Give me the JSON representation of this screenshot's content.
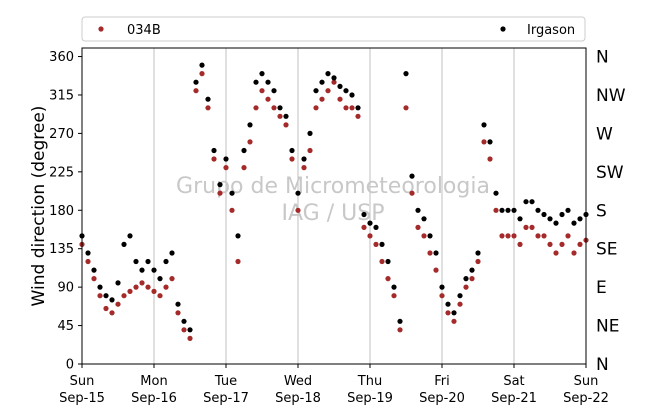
{
  "chart_data": {
    "type": "scatter",
    "title": "",
    "xlabel": "",
    "ylabel": "Wind direction (degree)",
    "ylim": [
      0,
      370
    ],
    "xlim": [
      "2019-09-15",
      "2019-09-22"
    ],
    "y_ticks": [
      0,
      45,
      90,
      135,
      180,
      225,
      270,
      315,
      360
    ],
    "x_ticks": [
      {
        "value": "2019-09-15",
        "line1": "Sun",
        "line2": "Sep-15"
      },
      {
        "value": "2019-09-16",
        "line1": "Mon",
        "line2": "Sep-16"
      },
      {
        "value": "2019-09-17",
        "line1": "Tue",
        "line2": "Sep-17"
      },
      {
        "value": "2019-09-18",
        "line1": "Wed",
        "line2": "Sep-18"
      },
      {
        "value": "2019-09-19",
        "line1": "Thu",
        "line2": "Sep-19"
      },
      {
        "value": "2019-09-20",
        "line1": "Fri",
        "line2": "Sep-20"
      },
      {
        "value": "2019-09-21",
        "line1": "Sat",
        "line2": "Sep-21"
      },
      {
        "value": "2019-09-22",
        "line1": "Sun",
        "line2": "Sep-22"
      }
    ],
    "compass_labels": [
      {
        "value": 0,
        "label": "N"
      },
      {
        "value": 45,
        "label": "NE"
      },
      {
        "value": 90,
        "label": "E"
      },
      {
        "value": 135,
        "label": "SE"
      },
      {
        "value": 180,
        "label": "S"
      },
      {
        "value": 225,
        "label": "SW"
      },
      {
        "value": 270,
        "label": "W"
      },
      {
        "value": 315,
        "label": "NW"
      },
      {
        "value": 360,
        "label": "N"
      }
    ],
    "grid": "vertical",
    "legend_position": "top",
    "watermark": [
      "Grupo de Micrometeorologia",
      "IAG / USP"
    ],
    "series": [
      {
        "name": "034B",
        "color": "#a52a2a",
        "points": [
          [
            "2019-09-15T00:00",
            140
          ],
          [
            "2019-09-15T02:00",
            120
          ],
          [
            "2019-09-15T04:00",
            100
          ],
          [
            "2019-09-15T06:00",
            80
          ],
          [
            "2019-09-15T08:00",
            65
          ],
          [
            "2019-09-15T10:00",
            60
          ],
          [
            "2019-09-15T12:00",
            70
          ],
          [
            "2019-09-15T14:00",
            80
          ],
          [
            "2019-09-15T16:00",
            85
          ],
          [
            "2019-09-15T18:00",
            90
          ],
          [
            "2019-09-15T20:00",
            95
          ],
          [
            "2019-09-15T22:00",
            90
          ],
          [
            "2019-09-16T00:00",
            85
          ],
          [
            "2019-09-16T02:00",
            80
          ],
          [
            "2019-09-16T04:00",
            90
          ],
          [
            "2019-09-16T06:00",
            100
          ],
          [
            "2019-09-16T08:00",
            60
          ],
          [
            "2019-09-16T10:00",
            40
          ],
          [
            "2019-09-16T12:00",
            30
          ],
          [
            "2019-09-16T14:00",
            320
          ],
          [
            "2019-09-16T16:00",
            340
          ],
          [
            "2019-09-16T18:00",
            300
          ],
          [
            "2019-09-16T20:00",
            240
          ],
          [
            "2019-09-16T22:00",
            200
          ],
          [
            "2019-09-17T00:00",
            230
          ],
          [
            "2019-09-17T02:00",
            180
          ],
          [
            "2019-09-17T04:00",
            120
          ],
          [
            "2019-09-17T06:00",
            230
          ],
          [
            "2019-09-17T08:00",
            260
          ],
          [
            "2019-09-17T10:00",
            300
          ],
          [
            "2019-09-17T12:00",
            320
          ],
          [
            "2019-09-17T14:00",
            310
          ],
          [
            "2019-09-17T16:00",
            300
          ],
          [
            "2019-09-17T18:00",
            290
          ],
          [
            "2019-09-17T20:00",
            280
          ],
          [
            "2019-09-17T22:00",
            240
          ],
          [
            "2019-09-18T00:00",
            180
          ],
          [
            "2019-09-18T02:00",
            230
          ],
          [
            "2019-09-18T04:00",
            250
          ],
          [
            "2019-09-18T06:00",
            300
          ],
          [
            "2019-09-18T08:00",
            310
          ],
          [
            "2019-09-18T10:00",
            320
          ],
          [
            "2019-09-18T12:00",
            330
          ],
          [
            "2019-09-18T14:00",
            310
          ],
          [
            "2019-09-18T16:00",
            300
          ],
          [
            "2019-09-18T18:00",
            300
          ],
          [
            "2019-09-18T20:00",
            290
          ],
          [
            "2019-09-18T22:00",
            160
          ],
          [
            "2019-09-19T00:00",
            150
          ],
          [
            "2019-09-19T02:00",
            140
          ],
          [
            "2019-09-19T04:00",
            120
          ],
          [
            "2019-09-19T06:00",
            100
          ],
          [
            "2019-09-19T08:00",
            80
          ],
          [
            "2019-09-19T10:00",
            40
          ],
          [
            "2019-09-19T12:00",
            300
          ],
          [
            "2019-09-19T14:00",
            200
          ],
          [
            "2019-09-19T16:00",
            160
          ],
          [
            "2019-09-19T18:00",
            150
          ],
          [
            "2019-09-19T20:00",
            130
          ],
          [
            "2019-09-19T22:00",
            110
          ],
          [
            "2019-09-20T00:00",
            80
          ],
          [
            "2019-09-20T02:00",
            60
          ],
          [
            "2019-09-20T04:00",
            50
          ],
          [
            "2019-09-20T06:00",
            70
          ],
          [
            "2019-09-20T08:00",
            90
          ],
          [
            "2019-09-20T10:00",
            100
          ],
          [
            "2019-09-20T12:00",
            120
          ],
          [
            "2019-09-20T14:00",
            260
          ],
          [
            "2019-09-20T16:00",
            240
          ],
          [
            "2019-09-20T18:00",
            180
          ],
          [
            "2019-09-20T20:00",
            150
          ],
          [
            "2019-09-20T22:00",
            150
          ],
          [
            "2019-09-21T00:00",
            150
          ],
          [
            "2019-09-21T02:00",
            140
          ],
          [
            "2019-09-21T04:00",
            160
          ],
          [
            "2019-09-21T06:00",
            160
          ],
          [
            "2019-09-21T08:00",
            150
          ],
          [
            "2019-09-21T10:00",
            150
          ],
          [
            "2019-09-21T12:00",
            140
          ],
          [
            "2019-09-21T14:00",
            130
          ],
          [
            "2019-09-21T16:00",
            140
          ],
          [
            "2019-09-21T18:00",
            150
          ],
          [
            "2019-09-21T20:00",
            130
          ],
          [
            "2019-09-21T22:00",
            140
          ],
          [
            "2019-09-22T00:00",
            145
          ]
        ]
      },
      {
        "name": "Irgason",
        "color": "#000000",
        "points": [
          [
            "2019-09-15T00:00",
            150
          ],
          [
            "2019-09-15T02:00",
            130
          ],
          [
            "2019-09-15T04:00",
            110
          ],
          [
            "2019-09-15T06:00",
            90
          ],
          [
            "2019-09-15T08:00",
            80
          ],
          [
            "2019-09-15T10:00",
            75
          ],
          [
            "2019-09-15T12:00",
            95
          ],
          [
            "2019-09-15T14:00",
            140
          ],
          [
            "2019-09-15T16:00",
            150
          ],
          [
            "2019-09-15T18:00",
            120
          ],
          [
            "2019-09-15T20:00",
            110
          ],
          [
            "2019-09-15T22:00",
            120
          ],
          [
            "2019-09-16T00:00",
            110
          ],
          [
            "2019-09-16T02:00",
            100
          ],
          [
            "2019-09-16T04:00",
            120
          ],
          [
            "2019-09-16T06:00",
            130
          ],
          [
            "2019-09-16T08:00",
            70
          ],
          [
            "2019-09-16T10:00",
            50
          ],
          [
            "2019-09-16T12:00",
            40
          ],
          [
            "2019-09-16T14:00",
            330
          ],
          [
            "2019-09-16T16:00",
            350
          ],
          [
            "2019-09-16T18:00",
            310
          ],
          [
            "2019-09-16T20:00",
            250
          ],
          [
            "2019-09-16T22:00",
            210
          ],
          [
            "2019-09-17T00:00",
            240
          ],
          [
            "2019-09-17T02:00",
            200
          ],
          [
            "2019-09-17T04:00",
            150
          ],
          [
            "2019-09-17T06:00",
            250
          ],
          [
            "2019-09-17T08:00",
            280
          ],
          [
            "2019-09-17T10:00",
            330
          ],
          [
            "2019-09-17T12:00",
            340
          ],
          [
            "2019-09-17T14:00",
            330
          ],
          [
            "2019-09-17T16:00",
            320
          ],
          [
            "2019-09-17T18:00",
            300
          ],
          [
            "2019-09-17T20:00",
            290
          ],
          [
            "2019-09-17T22:00",
            250
          ],
          [
            "2019-09-18T00:00",
            200
          ],
          [
            "2019-09-18T02:00",
            240
          ],
          [
            "2019-09-18T04:00",
            270
          ],
          [
            "2019-09-18T06:00",
            320
          ],
          [
            "2019-09-18T08:00",
            330
          ],
          [
            "2019-09-18T10:00",
            340
          ],
          [
            "2019-09-18T12:00",
            335
          ],
          [
            "2019-09-18T14:00",
            325
          ],
          [
            "2019-09-18T16:00",
            320
          ],
          [
            "2019-09-18T18:00",
            315
          ],
          [
            "2019-09-18T20:00",
            300
          ],
          [
            "2019-09-18T22:00",
            175
          ],
          [
            "2019-09-19T00:00",
            165
          ],
          [
            "2019-09-19T02:00",
            160
          ],
          [
            "2019-09-19T04:00",
            140
          ],
          [
            "2019-09-19T06:00",
            120
          ],
          [
            "2019-09-19T08:00",
            90
          ],
          [
            "2019-09-19T10:00",
            50
          ],
          [
            "2019-09-19T12:00",
            340
          ],
          [
            "2019-09-19T14:00",
            220
          ],
          [
            "2019-09-19T16:00",
            180
          ],
          [
            "2019-09-19T18:00",
            170
          ],
          [
            "2019-09-19T20:00",
            150
          ],
          [
            "2019-09-19T22:00",
            130
          ],
          [
            "2019-09-20T00:00",
            90
          ],
          [
            "2019-09-20T02:00",
            70
          ],
          [
            "2019-09-20T04:00",
            60
          ],
          [
            "2019-09-20T06:00",
            80
          ],
          [
            "2019-09-20T08:00",
            100
          ],
          [
            "2019-09-20T10:00",
            110
          ],
          [
            "2019-09-20T12:00",
            130
          ],
          [
            "2019-09-20T14:00",
            280
          ],
          [
            "2019-09-20T16:00",
            260
          ],
          [
            "2019-09-20T18:00",
            200
          ],
          [
            "2019-09-20T20:00",
            180
          ],
          [
            "2019-09-20T22:00",
            180
          ],
          [
            "2019-09-21T00:00",
            180
          ],
          [
            "2019-09-21T02:00",
            170
          ],
          [
            "2019-09-21T04:00",
            190
          ],
          [
            "2019-09-21T06:00",
            190
          ],
          [
            "2019-09-21T08:00",
            180
          ],
          [
            "2019-09-21T10:00",
            175
          ],
          [
            "2019-09-21T12:00",
            170
          ],
          [
            "2019-09-21T14:00",
            165
          ],
          [
            "2019-09-21T16:00",
            175
          ],
          [
            "2019-09-21T18:00",
            180
          ],
          [
            "2019-09-21T20:00",
            165
          ],
          [
            "2019-09-21T22:00",
            170
          ],
          [
            "2019-09-22T00:00",
            175
          ]
        ]
      }
    ]
  }
}
